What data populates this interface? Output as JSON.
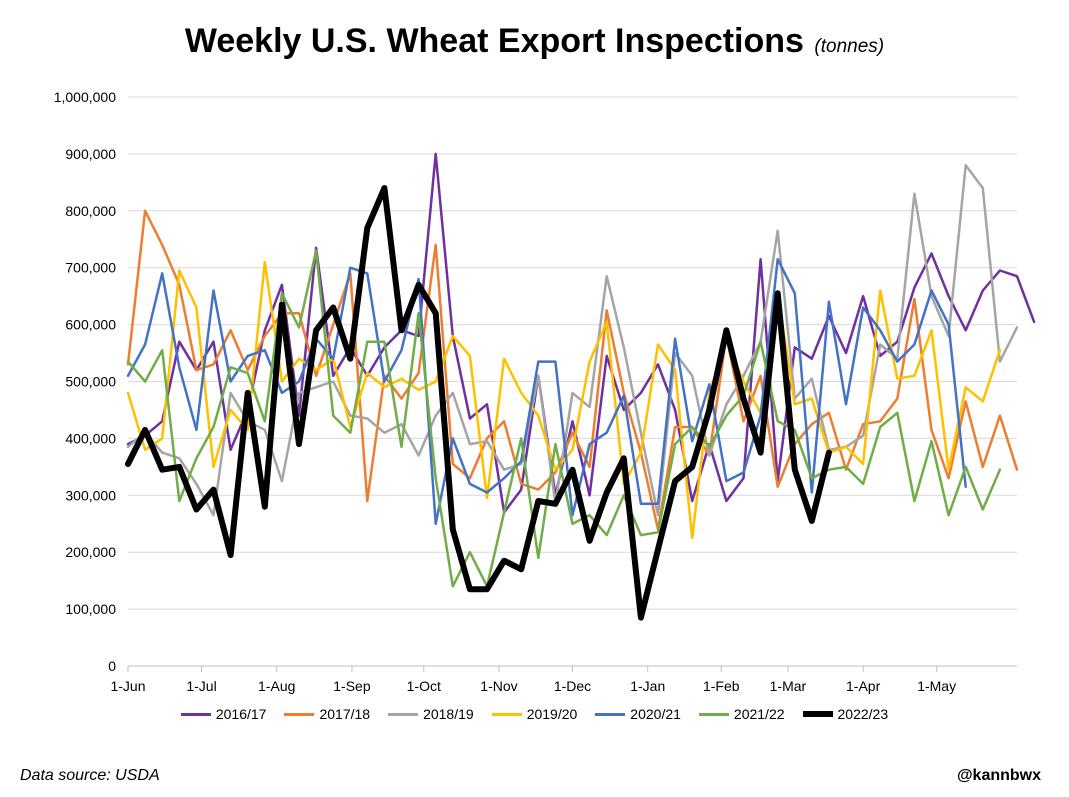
{
  "chart_data": {
    "type": "line",
    "title": "Weekly U.S. Wheat Export Inspections",
    "subtitle": "(tonnes)",
    "ylim": [
      0,
      1000000
    ],
    "yticks": [
      0,
      100000,
      200000,
      300000,
      400000,
      500000,
      600000,
      700000,
      800000,
      900000,
      1000000
    ],
    "ytick_labels": [
      "0",
      "100,000",
      "200,000",
      "300,000",
      "400,000",
      "500,000",
      "600,000",
      "700,000",
      "800,000",
      "900,000",
      "1,000,000"
    ],
    "xlim": [
      0,
      52
    ],
    "xticks": [
      0,
      4.3,
      8.7,
      13.1,
      17.3,
      21.7,
      26.0,
      30.4,
      34.7,
      38.6,
      43.0,
      47.3
    ],
    "xtick_labels": [
      "1-Jun",
      "1-Jul",
      "1-Aug",
      "1-Sep",
      "1-Oct",
      "1-Nov",
      "1-Dec",
      "1-Jan",
      "1-Feb",
      "1-Mar",
      "1-Apr",
      "1-May"
    ],
    "grid": true,
    "legend_position": "bottom",
    "series": [
      {
        "name": "2016/17",
        "color": "#7030a0",
        "width": 2.5,
        "values": [
          390000,
          405000,
          430000,
          570000,
          520000,
          570000,
          380000,
          450000,
          590000,
          670000,
          440000,
          735000,
          510000,
          560000,
          510000,
          560000,
          590000,
          580000,
          900000,
          580000,
          435000,
          460000,
          270000,
          310000,
          510000,
          300000,
          430000,
          300000,
          545000,
          450000,
          480000,
          530000,
          450000,
          290000,
          390000,
          290000,
          330000,
          715000,
          325000,
          560000,
          540000,
          615000,
          550000,
          650000,
          545000,
          570000,
          665000,
          725000,
          650000,
          590000,
          660000,
          695000,
          685000,
          605000
        ]
      },
      {
        "name": "2017/18",
        "color": "#ed7d31",
        "width": 2.5,
        "values": [
          530000,
          800000,
          740000,
          670000,
          520000,
          530000,
          590000,
          520000,
          580000,
          620000,
          620000,
          510000,
          600000,
          690000,
          290000,
          510000,
          470000,
          515000,
          740000,
          355000,
          330000,
          400000,
          430000,
          320000,
          310000,
          340000,
          410000,
          350000,
          625000,
          480000,
          375000,
          240000,
          420000,
          420000,
          370000,
          580000,
          430000,
          510000,
          315000,
          390000,
          425000,
          445000,
          345000,
          425000,
          430000,
          470000,
          645000,
          415000,
          330000,
          465000,
          350000,
          440000,
          345000
        ]
      },
      {
        "name": "2018/19",
        "color": "#a5a5a5",
        "width": 2.5,
        "values": [
          385000,
          410000,
          375000,
          365000,
          320000,
          265000,
          480000,
          430000,
          415000,
          325000,
          480000,
          490000,
          500000,
          440000,
          435000,
          410000,
          425000,
          370000,
          440000,
          480000,
          390000,
          395000,
          345000,
          355000,
          510000,
          285000,
          480000,
          455000,
          685000,
          560000,
          410000,
          265000,
          550000,
          510000,
          370000,
          460000,
          510000,
          570000,
          765000,
          470000,
          505000,
          380000,
          385000,
          405000,
          565000,
          540000,
          830000,
          650000,
          580000,
          880000,
          840000,
          535000,
          595000
        ]
      },
      {
        "name": "2019/20",
        "color": "#ffc000",
        "width": 2.5,
        "values": [
          480000,
          380000,
          400000,
          695000,
          630000,
          350000,
          450000,
          415000,
          710000,
          500000,
          540000,
          520000,
          540000,
          420000,
          515000,
          490000,
          505000,
          485000,
          500000,
          580000,
          545000,
          295000,
          540000,
          480000,
          440000,
          345000,
          380000,
          535000,
          605000,
          320000,
          375000,
          565000,
          520000,
          225000,
          480000,
          570000,
          500000,
          445000,
          655000,
          460000,
          470000,
          375000,
          385000,
          355000,
          660000,
          505000,
          510000,
          590000,
          345000,
          490000,
          465000,
          555000
        ]
      },
      {
        "name": "2020/21",
        "color": "#4472c4",
        "width": 2.5,
        "values": [
          510000,
          565000,
          690000,
          525000,
          415000,
          660000,
          500000,
          545000,
          555000,
          480000,
          500000,
          575000,
          540000,
          700000,
          690000,
          500000,
          555000,
          680000,
          250000,
          400000,
          320000,
          305000,
          330000,
          360000,
          535000,
          535000,
          265000,
          390000,
          410000,
          475000,
          285000,
          285000,
          575000,
          395000,
          495000,
          325000,
          340000,
          440000,
          715000,
          655000,
          305000,
          640000,
          460000,
          630000,
          590000,
          535000,
          565000,
          660000,
          600000,
          315000
        ]
      },
      {
        "name": "2021/22",
        "color": "#70ad47",
        "width": 2.5,
        "values": [
          535000,
          500000,
          555000,
          290000,
          365000,
          420000,
          525000,
          515000,
          430000,
          655000,
          595000,
          730000,
          440000,
          410000,
          570000,
          570000,
          385000,
          620000,
          330000,
          140000,
          200000,
          140000,
          270000,
          400000,
          190000,
          390000,
          250000,
          265000,
          230000,
          300000,
          230000,
          235000,
          390000,
          420000,
          385000,
          440000,
          475000,
          570000,
          430000,
          415000,
          330000,
          345000,
          350000,
          320000,
          420000,
          445000,
          290000,
          395000,
          265000,
          350000,
          275000,
          345000
        ]
      },
      {
        "name": "2022/23",
        "color": "#000000",
        "width": 6,
        "values": [
          355000,
          415000,
          345000,
          350000,
          275000,
          310000,
          195000,
          480000,
          280000,
          635000,
          390000,
          590000,
          630000,
          540000,
          770000,
          840000,
          590000,
          670000,
          620000,
          240000,
          135000,
          135000,
          185000,
          170000,
          290000,
          285000,
          345000,
          220000,
          305000,
          365000,
          85000,
          205000,
          325000,
          350000,
          450000,
          590000,
          470000,
          375000,
          655000,
          345000,
          255000,
          375000
        ]
      }
    ]
  },
  "footer": {
    "source": "Data source: USDA",
    "credit": "@kannbwx"
  }
}
